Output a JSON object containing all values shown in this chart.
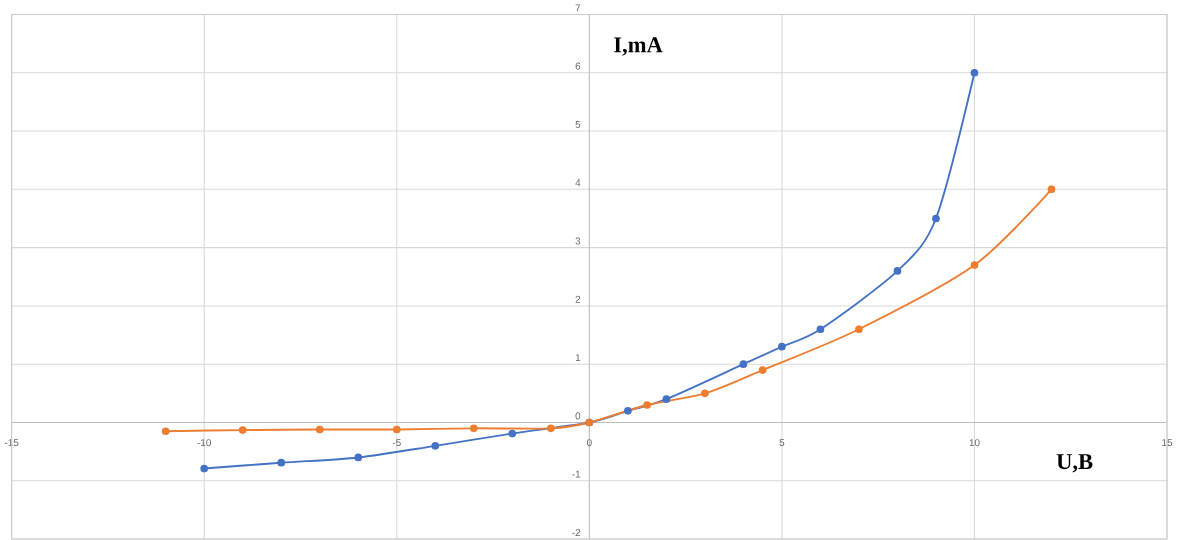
{
  "chart_data": {
    "type": "line",
    "xlabel": "U,B",
    "ylabel": "I,mA",
    "xlim": [
      -15,
      15
    ],
    "ylim": [
      -2,
      7
    ],
    "xticks": [
      -15,
      -10,
      -5,
      0,
      5,
      10,
      15
    ],
    "yticks": [
      -2,
      -1,
      0,
      1,
      2,
      3,
      4,
      5,
      6,
      7
    ],
    "grid": true,
    "marker": "circle",
    "line_style": "solid",
    "series": [
      {
        "color": "#4472c4",
        "x": [
          -10,
          -8,
          -6,
          -4,
          -2,
          0,
          1,
          2,
          4,
          5,
          6,
          8,
          9,
          10
        ],
        "values": [
          -0.79,
          -0.69,
          -0.6,
          -0.4,
          -0.19,
          0,
          0.2,
          0.4,
          1.0,
          1.3,
          1.6,
          2.6,
          3.5,
          6.0
        ]
      },
      {
        "color": "#ed7d31",
        "x": [
          -11,
          -9,
          -7,
          -5,
          -3,
          -1,
          0,
          1.5,
          3,
          4.5,
          7,
          10,
          12
        ],
        "values": [
          -0.15,
          -0.13,
          -0.12,
          -0.12,
          -0.1,
          -0.1,
          0,
          0.3,
          0.5,
          0.9,
          1.6,
          2.7,
          4.0
        ]
      }
    ]
  }
}
